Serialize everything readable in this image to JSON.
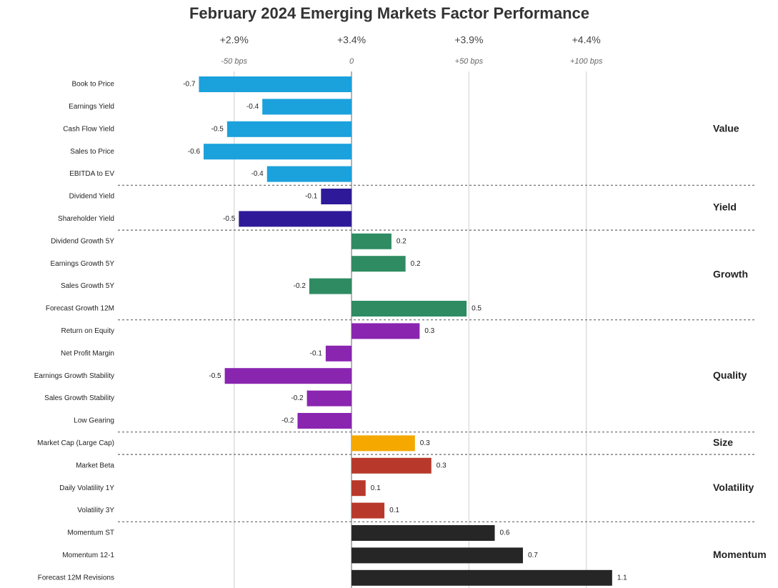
{
  "chart_data": {
    "type": "bar",
    "orientation": "horizontal",
    "title": "February 2024 Emerging Markets Factor Performance",
    "xlim": [
      -0.98,
      1.5
    ],
    "xticks": [
      {
        "value": -0.5,
        "label": "-50 bps"
      },
      0,
      {
        "value": 0.5,
        "label": "+50 bps"
      },
      {
        "value": 1.0,
        "label": "+100 bps"
      }
    ],
    "x2lim": [
      2.42,
      4.9
    ],
    "x2ticks": [
      {
        "value": 2.9,
        "label": "+2.9%"
      },
      {
        "value": 3.4,
        "label": "+3.4%"
      },
      {
        "value": 3.9,
        "label": "+3.9%"
      },
      {
        "value": 4.4,
        "label": "+4.4%"
      }
    ],
    "grid": true,
    "groups": [
      {
        "name": "Value",
        "color": "#1ba1dc",
        "categories": [
          "Book to Price",
          "Earnings Yield",
          "Cash Flow Yield",
          "Sales to Price",
          "EBITDA to EV"
        ],
        "values": [
          -0.65,
          -0.38,
          -0.53,
          -0.63,
          -0.36
        ],
        "value_labels": [
          "-0.7",
          "-0.4",
          "-0.5",
          "-0.6",
          "-0.4"
        ]
      },
      {
        "name": "Yield",
        "color": "#2e1a98",
        "categories": [
          "Dividend Yield",
          "Shareholder Yield"
        ],
        "values": [
          -0.13,
          -0.48
        ],
        "value_labels": [
          "-0.1",
          "-0.5"
        ]
      },
      {
        "name": "Growth",
        "color": "#2e8b62",
        "categories": [
          "Dividend Growth 5Y",
          "Earnings Growth 5Y",
          "Sales Growth 5Y",
          "Forecast Growth 12M"
        ],
        "values": [
          0.17,
          0.23,
          -0.18,
          0.49
        ],
        "value_labels": [
          "0.2",
          "0.2",
          "-0.2",
          "0.5"
        ]
      },
      {
        "name": "Quality",
        "color": "#8a25b0",
        "categories": [
          "Return on Equity",
          "Net Profit Margin",
          "Earnings Growth Stability",
          "Sales Growth Stability",
          "Low Gearing"
        ],
        "values": [
          0.29,
          -0.11,
          -0.54,
          -0.19,
          -0.23
        ],
        "value_labels": [
          "0.3",
          "-0.1",
          "-0.5",
          "-0.2",
          "-0.2"
        ]
      },
      {
        "name": "Size",
        "color": "#f5a800",
        "categories": [
          "Market Cap (Large Cap)"
        ],
        "values": [
          0.27
        ],
        "value_labels": [
          "0.3"
        ]
      },
      {
        "name": "Volatility",
        "color": "#b8392b",
        "categories": [
          "Market Beta",
          "Daily Volatility 1Y",
          "Volatility 3Y"
        ],
        "values": [
          0.34,
          0.06,
          0.14
        ],
        "value_labels": [
          "0.3",
          "0.1",
          "0.1"
        ]
      },
      {
        "name": "Momentum",
        "color": "#262626",
        "categories": [
          "Momentum ST",
          "Momentum 12-1",
          "Forecast 12M Revisions"
        ],
        "values": [
          0.61,
          0.73,
          1.11
        ],
        "value_labels": [
          "0.6",
          "0.7",
          "1.1"
        ]
      }
    ]
  }
}
